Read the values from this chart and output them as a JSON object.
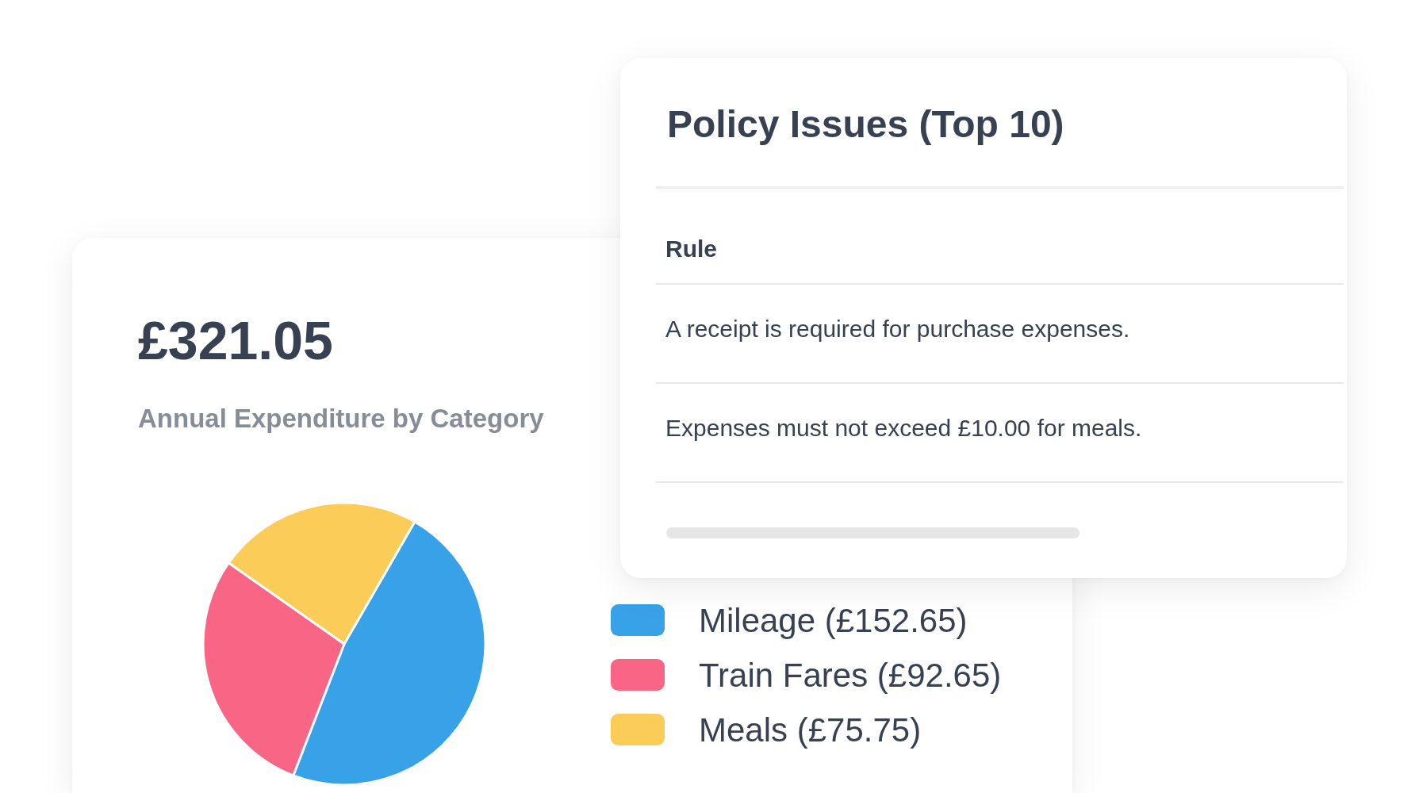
{
  "chart_data": [
    {
      "type": "other",
      "title": "Policy Issues (Top 10)",
      "annotations": [
        "Rule",
        "A receipt is required for purchase expenses.",
        "Expenses must not exceed £10.00 for meals."
      ]
    },
    {
      "type": "pie",
      "title": "£321.05",
      "subtitle": "Annual Expenditure by Category",
      "categories": [
        "Mileage (£152.65)",
        "Train Fares (£92.65)",
        "Meals (£75.75)"
      ],
      "values": [
        152.65,
        92.65,
        75.75
      ],
      "colors": [
        "#37a2e8",
        "#f96584",
        "#fbcc57"
      ],
      "legend": "right"
    }
  ]
}
